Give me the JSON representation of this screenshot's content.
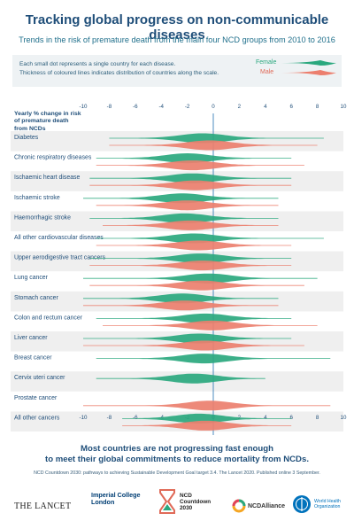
{
  "header": {
    "title": "Tracking global progress on non-communicable diseases",
    "subtitle": "Trends in the risk of premature death from the main four NCD groups from 2010 to 2016"
  },
  "legend": {
    "note_line1": "Each small dot represents a single country for each disease.",
    "note_line2": "Thickness of coloured lines indicates distribution of countries along the scale.",
    "female_label": "Female",
    "male_label": "Male",
    "female_color": "#2aa87e",
    "male_color": "#ec7f6e"
  },
  "chart_data": {
    "type": "violin",
    "y_axis_header": "Yearly % change in risk of premature death from NCDs",
    "x_ticks": [
      "-10",
      "-8",
      "-6",
      "-4",
      "-2",
      "0",
      "2",
      "4",
      "6",
      "8",
      "10"
    ],
    "xlim": [
      -10,
      10
    ],
    "series": [
      {
        "name": "Female"
      },
      {
        "name": "Male"
      }
    ],
    "categories": [
      "Diabetes",
      "Chronic respiratory diseases",
      "Ischaemic heart disease",
      "Ischaemic stroke",
      "Haemorrhagic stroke",
      "All other cardiovascular diseases",
      "Upper aerodigestive tract cancers",
      "Lung cancer",
      "Stomach cancer",
      "Colon and rectum cancer",
      "Liver cancer",
      "Breast cancer",
      "Cervix uteri cancer",
      "Prostate cancer",
      "All other cancers"
    ],
    "distributions": [
      {
        "female": {
          "center": -0.8,
          "min": -8,
          "max": 8.5
        },
        "male": {
          "center": -0.3,
          "min": -8,
          "max": 8
        }
      },
      {
        "female": {
          "center": -2.0,
          "min": -9,
          "max": 6
        },
        "male": {
          "center": -1.6,
          "min": -9,
          "max": 7
        }
      },
      {
        "female": {
          "center": -1.6,
          "min": -9.5,
          "max": 6
        },
        "male": {
          "center": -1.4,
          "min": -9.5,
          "max": 6
        }
      },
      {
        "female": {
          "center": -2.4,
          "min": -10,
          "max": 5
        },
        "male": {
          "center": -2.0,
          "min": -9,
          "max": 5
        }
      },
      {
        "female": {
          "center": -2.2,
          "min": -9.5,
          "max": 5
        },
        "male": {
          "center": -1.8,
          "min": -8.5,
          "max": 5
        }
      },
      {
        "female": {
          "center": -1.5,
          "min": -9,
          "max": 8.5
        },
        "male": {
          "center": -1.1,
          "min": -9,
          "max": 6
        }
      },
      {
        "female": {
          "center": -1.0,
          "min": -9.5,
          "max": 6
        },
        "male": {
          "center": -0.8,
          "min": -9.5,
          "max": 6
        }
      },
      {
        "female": {
          "center": -0.4,
          "min": -10,
          "max": 8
        },
        "male": {
          "center": -0.9,
          "min": -9.5,
          "max": 7
        }
      },
      {
        "female": {
          "center": -2.4,
          "min": -10,
          "max": 5
        },
        "male": {
          "center": -2.2,
          "min": -10,
          "max": 5
        }
      },
      {
        "female": {
          "center": -0.6,
          "min": -9,
          "max": 6
        },
        "male": {
          "center": -0.1,
          "min": -8.5,
          "max": 8
        }
      },
      {
        "female": {
          "center": -1.1,
          "min": -10,
          "max": 6
        },
        "male": {
          "center": -0.6,
          "min": -10,
          "max": 7
        }
      },
      {
        "female": {
          "center": -0.7,
          "min": -9,
          "max": 9
        },
        "male": null
      },
      {
        "female": {
          "center": -1.5,
          "min": -9,
          "max": 4
        },
        "male": null
      },
      {
        "female": null,
        "male": {
          "center": -0.3,
          "min": -10,
          "max": 9
        }
      },
      {
        "female": {
          "center": -1.1,
          "min": -7,
          "max": 6
        },
        "male": {
          "center": -0.6,
          "min": -7,
          "max": 6
        }
      }
    ]
  },
  "footer": {
    "conclusion_line1": "Most countries are not progressing fast enough",
    "conclusion_line2": "to meet their global commitments to reduce mortality from NCDs.",
    "citation": "NCD Countdown 2030: pathways to achieving Sustainable Development Goal target 3.4. The Lancet 2020. Published online 3 September.",
    "logo_lancet": "THE LANCET",
    "logo_imperial_1": "Imperial College",
    "logo_imperial_2": "London",
    "logo_ncdc_1": "NCD",
    "logo_ncdc_2": "Countdown",
    "logo_ncdc_3": "2030",
    "logo_alliance": "NCDAlliance",
    "logo_who_1": "World Health",
    "logo_who_2": "Organization"
  }
}
